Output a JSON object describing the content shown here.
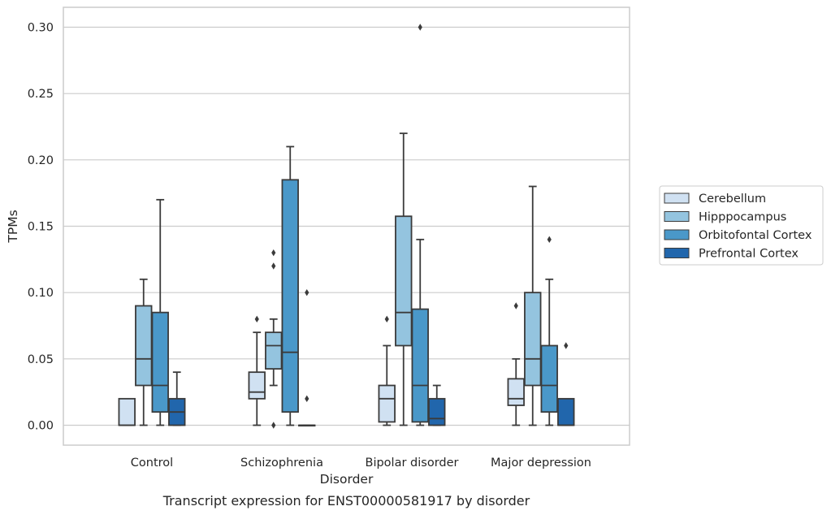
{
  "caption": "Transcript expression for ENST00000581917 by disorder",
  "chart_data": {
    "type": "box",
    "xlabel": "Disorder",
    "ylabel": "TPMs",
    "ylim": [
      -0.015,
      0.315
    ],
    "yticks": [
      0.0,
      0.05,
      0.1,
      0.15,
      0.2,
      0.25,
      0.3
    ],
    "ytick_labels": [
      "0.00",
      "0.05",
      "0.10",
      "0.15",
      "0.20",
      "0.25",
      "0.30"
    ],
    "grid": "horizontal",
    "legend_position": "right-center",
    "categories": [
      "Control",
      "Schizophrenia",
      "Bipolar disorder",
      "Major depression"
    ],
    "series": [
      {
        "name": "Cerebellum",
        "color": "#d0e1f2",
        "boxes": [
          {
            "q1": 0.0,
            "median": 0.0,
            "q3": 0.02,
            "whisker_low": 0.0,
            "whisker_high": 0.02,
            "outliers": []
          },
          {
            "q1": 0.02,
            "median": 0.025,
            "q3": 0.04,
            "whisker_low": 0.0,
            "whisker_high": 0.07,
            "outliers": [
              0.08
            ]
          },
          {
            "q1": 0.0025,
            "median": 0.02,
            "q3": 0.03,
            "whisker_low": 0.0,
            "whisker_high": 0.06,
            "outliers": [
              0.08
            ]
          },
          {
            "q1": 0.015,
            "median": 0.02,
            "q3": 0.035,
            "whisker_low": 0.0,
            "whisker_high": 0.05,
            "outliers": [
              0.09
            ]
          }
        ]
      },
      {
        "name": "Hipppocampus",
        "color": "#94c4df",
        "boxes": [
          {
            "q1": 0.03,
            "median": 0.05,
            "q3": 0.09,
            "whisker_low": 0.0,
            "whisker_high": 0.11,
            "outliers": []
          },
          {
            "q1": 0.0425,
            "median": 0.06,
            "q3": 0.07,
            "whisker_low": 0.03,
            "whisker_high": 0.08,
            "outliers": [
              0.12,
              0.13,
              0.0
            ]
          },
          {
            "q1": 0.06,
            "median": 0.085,
            "q3": 0.1575,
            "whisker_low": 0.0,
            "whisker_high": 0.22,
            "outliers": []
          },
          {
            "q1": 0.03,
            "median": 0.05,
            "q3": 0.1,
            "whisker_low": 0.0,
            "whisker_high": 0.18,
            "outliers": []
          }
        ]
      },
      {
        "name": "Orbitofontal Cortex",
        "color": "#4a98c9",
        "boxes": [
          {
            "q1": 0.01,
            "median": 0.03,
            "q3": 0.085,
            "whisker_low": 0.0,
            "whisker_high": 0.17,
            "outliers": []
          },
          {
            "q1": 0.01,
            "median": 0.055,
            "q3": 0.185,
            "whisker_low": 0.0,
            "whisker_high": 0.21,
            "outliers": []
          },
          {
            "q1": 0.0025,
            "median": 0.03,
            "q3": 0.0875,
            "whisker_low": 0.0,
            "whisker_high": 0.14,
            "outliers": [
              0.3
            ]
          },
          {
            "q1": 0.01,
            "median": 0.03,
            "q3": 0.06,
            "whisker_low": 0.0,
            "whisker_high": 0.11,
            "outliers": [
              0.14
            ]
          }
        ]
      },
      {
        "name": "Prefrontal Cortex",
        "color": "#2166ac",
        "boxes": [
          {
            "q1": 0.0,
            "median": 0.01,
            "q3": 0.02,
            "whisker_low": 0.0,
            "whisker_high": 0.04,
            "outliers": []
          },
          {
            "q1": 0.0,
            "median": 0.0,
            "q3": 0.0,
            "whisker_low": 0.0,
            "whisker_high": 0.0,
            "outliers": [
              0.1,
              0.02
            ]
          },
          {
            "q1": 0.0,
            "median": 0.005,
            "q3": 0.02,
            "whisker_low": 0.0,
            "whisker_high": 0.03,
            "outliers": []
          },
          {
            "q1": 0.0,
            "median": 0.0,
            "q3": 0.02,
            "whisker_low": 0.0,
            "whisker_high": 0.02,
            "outliers": [
              0.06
            ]
          }
        ]
      }
    ]
  }
}
